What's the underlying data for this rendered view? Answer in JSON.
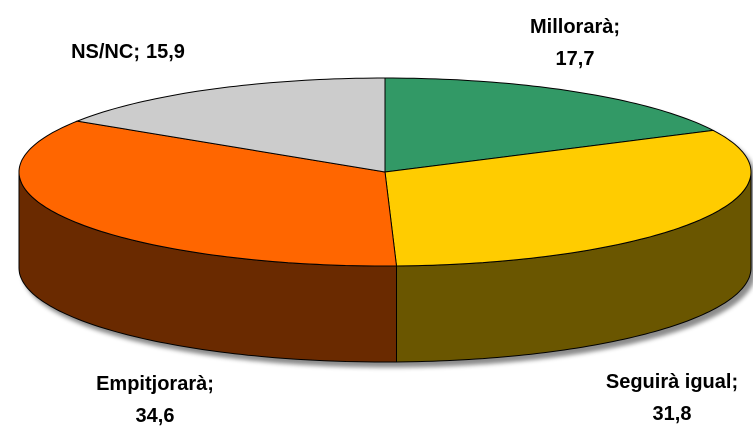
{
  "chart_data": {
    "type": "pie3d",
    "categories": [
      "Millorarà",
      "Seguirà igual",
      "Empitjorarà",
      "NS/NC"
    ],
    "values": [
      17.7,
      31.8,
      34.6,
      15.9
    ],
    "value_labels": [
      "17,7",
      "31,8",
      "34,6",
      "15,9"
    ],
    "label_separator": ";",
    "colors": [
      "#339966",
      "#ffcc00",
      "#ff6600",
      "#cccccc"
    ]
  }
}
